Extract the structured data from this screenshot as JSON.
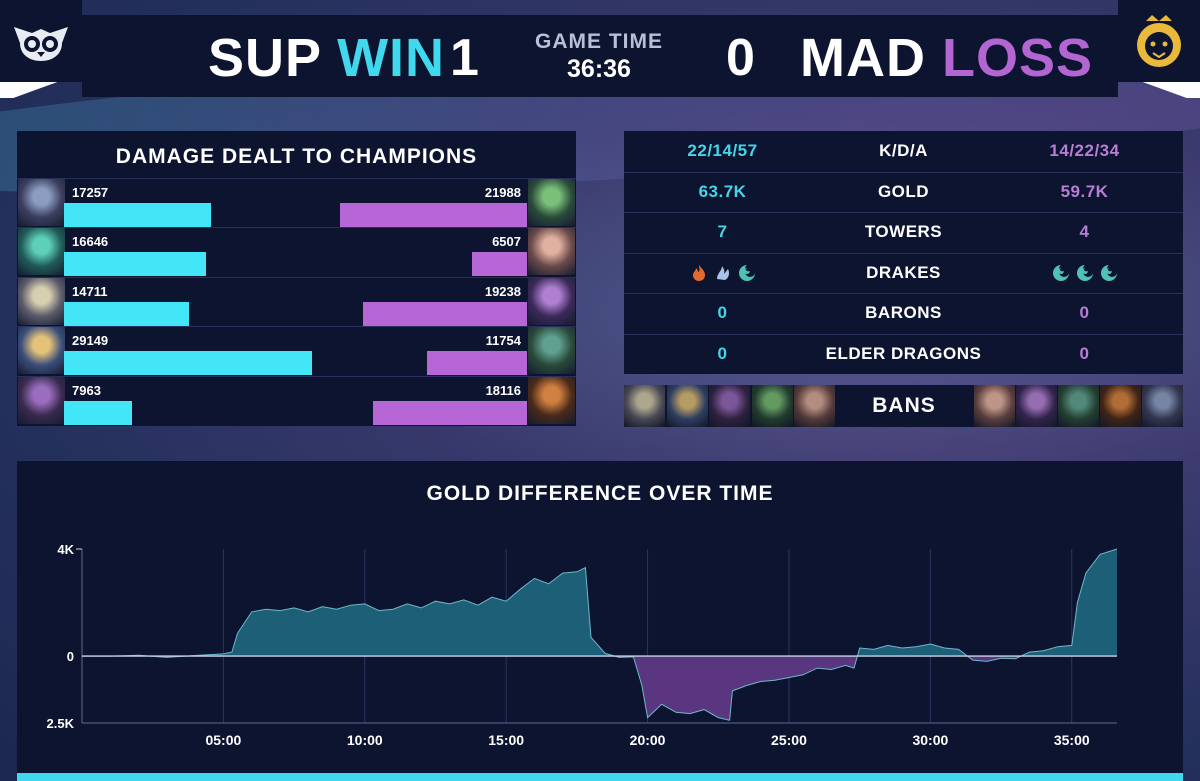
{
  "header": {
    "team_left": "SUP",
    "result_left": "WIN",
    "score_left": "1",
    "game_time_label": "GAME TIME",
    "game_time": "36:36",
    "score_right": "0",
    "team_right": "MAD",
    "result_right": "LOSS"
  },
  "colors": {
    "team_left": "#42e6f6",
    "team_right": "#b766d6",
    "panel": "#0d1430"
  },
  "damage": {
    "title": "DAMAGE DEALT TO CHAMPIONS",
    "max_value": 29149,
    "rows": [
      {
        "left": "17257",
        "right": "21988"
      },
      {
        "left": "16646",
        "right": "6507"
      },
      {
        "left": "14711",
        "right": "19238"
      },
      {
        "left": "29149",
        "right": "11754"
      },
      {
        "left": "7963",
        "right": "18116"
      }
    ],
    "portrait_icons_left": [
      "champion-portrait-icon",
      "champion-portrait-icon",
      "champion-portrait-icon",
      "champion-portrait-icon",
      "champion-portrait-icon"
    ],
    "portrait_icons_right": [
      "champion-portrait-icon",
      "champion-portrait-icon",
      "champion-portrait-icon",
      "champion-portrait-icon",
      "champion-portrait-icon"
    ]
  },
  "stats": {
    "rows": [
      {
        "label": "K/D/A",
        "left": "22/14/57",
        "right": "14/22/34"
      },
      {
        "label": "GOLD",
        "left": "63.7K",
        "right": "59.7K"
      },
      {
        "label": "TOWERS",
        "left": "7",
        "right": "4"
      },
      {
        "label": "DRAKES",
        "left": "",
        "right": ""
      },
      {
        "label": "BARONS",
        "left": "0",
        "right": "0"
      },
      {
        "label": "ELDER DRAGONS",
        "left": "0",
        "right": "0"
      }
    ],
    "drakes_left": [
      "infernal-drake-icon",
      "cloud-drake-icon",
      "ocean-drake-icon"
    ],
    "drakes_right": [
      "ocean-drake-icon",
      "ocean-drake-icon",
      "ocean-drake-icon"
    ]
  },
  "bans": {
    "label": "BANS",
    "left": [
      "champion-portrait-icon",
      "champion-portrait-icon",
      "champion-portrait-icon",
      "champion-portrait-icon",
      "champion-portrait-icon"
    ],
    "right": [
      "champion-portrait-icon",
      "champion-portrait-icon",
      "champion-portrait-icon",
      "champion-portrait-icon",
      "champion-portrait-icon"
    ]
  },
  "chart_data": {
    "type": "area",
    "title": "GOLD DIFFERENCE OVER TIME",
    "xlabel": "",
    "ylabel": "",
    "x_ticks": [
      "05:00",
      "10:00",
      "15:00",
      "20:00",
      "25:00",
      "30:00",
      "35:00"
    ],
    "x_tick_minutes": [
      5,
      10,
      15,
      20,
      25,
      30,
      35
    ],
    "y_ticks": [
      "4K",
      "0",
      "2.5K"
    ],
    "y_tick_values": [
      4000,
      0,
      -2500
    ],
    "ylim": [
      -2500,
      4000
    ],
    "xlim_minutes": [
      0,
      36.6
    ],
    "grid": "vertical",
    "series": [
      {
        "color_positive": "#1d5f76",
        "color_negative": "#5a3580",
        "x_minutes": [
          0,
          1,
          2,
          3,
          4,
          5,
          5.3,
          5.5,
          6,
          6.5,
          7,
          7.5,
          8,
          8.5,
          9,
          9.5,
          10,
          10.5,
          11,
          11.5,
          12,
          12.5,
          13,
          13.5,
          14,
          14.5,
          15,
          15.5,
          16,
          16.5,
          17,
          17.5,
          17.8,
          18,
          18.5,
          19,
          19.5,
          19.8,
          20,
          20.5,
          21,
          21.5,
          22,
          22.5,
          22.9,
          23,
          23.5,
          24,
          24.5,
          25,
          25.5,
          26,
          26.5,
          27,
          27.3,
          27.5,
          28,
          28.5,
          29,
          29.5,
          30,
          30.5,
          31,
          31.5,
          32,
          32.5,
          33,
          33.5,
          34,
          34.5,
          35,
          35.2,
          35.5,
          36,
          36.6
        ],
        "y": [
          0,
          0,
          30,
          -50,
          20,
          80,
          150,
          850,
          1650,
          1750,
          1700,
          1800,
          1650,
          1850,
          1750,
          1900,
          1950,
          1700,
          1750,
          1950,
          1800,
          2050,
          1950,
          2100,
          1900,
          2200,
          2050,
          2500,
          2900,
          2700,
          3100,
          3150,
          3300,
          700,
          100,
          -50,
          -30,
          -1100,
          -2300,
          -1800,
          -2100,
          -2150,
          -2000,
          -2300,
          -2400,
          -1300,
          -1100,
          -950,
          -900,
          -800,
          -700,
          -450,
          -500,
          -350,
          -450,
          300,
          250,
          400,
          300,
          350,
          450,
          300,
          250,
          -150,
          -200,
          -80,
          -100,
          150,
          200,
          350,
          400,
          2000,
          3100,
          3800,
          4000
        ]
      }
    ]
  }
}
